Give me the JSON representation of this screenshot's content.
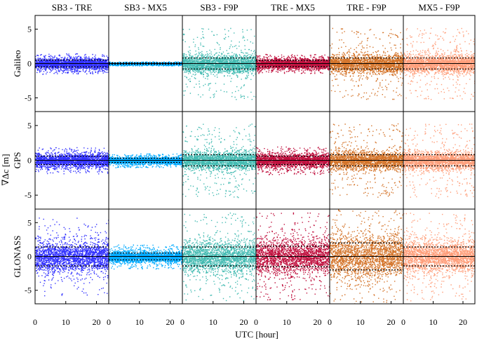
{
  "chart_data": {
    "type": "scatter",
    "ylabel": "∇Δc [m]",
    "xlabel": "UTC [hour]",
    "xlim": [
      0,
      24
    ],
    "ylim": [
      -7,
      7
    ],
    "x_ticks": [
      0,
      10,
      20
    ],
    "y_ticks": [
      -5,
      0,
      5
    ],
    "columns": [
      {
        "label": "SB3 - TRE",
        "color": "#3333ff"
      },
      {
        "label": "SB3 - MX5",
        "color": "#00aaff"
      },
      {
        "label": "SB3 - F9P",
        "color": "#44bbb2"
      },
      {
        "label": "TRE - MX5",
        "color": "#c0103e"
      },
      {
        "label": "TRE - F9P",
        "color": "#d4742a"
      },
      {
        "label": "MX5 - F9P",
        "color": "#ff9e7a"
      }
    ],
    "rows": [
      {
        "label": "Galileo",
        "std": [
          0.5,
          0.1,
          0.8,
          0.45,
          0.8,
          0.8
        ],
        "spread": [
          1.5,
          0.3,
          5.2,
          1.4,
          5.2,
          5.2
        ]
      },
      {
        "label": "GPS",
        "std": [
          0.6,
          0.3,
          0.8,
          0.6,
          0.8,
          0.8
        ],
        "spread": [
          1.9,
          1.0,
          5.3,
          2.0,
          5.3,
          5.3
        ]
      },
      {
        "label": "GLONASS",
        "std": [
          1.4,
          0.5,
          1.4,
          1.5,
          2.0,
          1.4
        ],
        "spread": [
          5.8,
          1.8,
          6.5,
          6.5,
          7.0,
          6.5
        ]
      }
    ],
    "series": [
      {
        "row": "Galileo",
        "name": "SB3 - TRE",
        "mean": 0,
        "std_band": 0.5
      },
      {
        "row": "Galileo",
        "name": "SB3 - MX5",
        "mean": 0,
        "std_band": 0.1
      },
      {
        "row": "Galileo",
        "name": "SB3 - F9P",
        "mean": 0,
        "std_band": 0.8
      },
      {
        "row": "Galileo",
        "name": "TRE - MX5",
        "mean": 0,
        "std_band": 0.45
      },
      {
        "row": "Galileo",
        "name": "TRE - F9P",
        "mean": 0,
        "std_band": 0.8
      },
      {
        "row": "Galileo",
        "name": "MX5 - F9P",
        "mean": 0,
        "std_band": 0.8
      },
      {
        "row": "GPS",
        "name": "SB3 - TRE",
        "mean": 0,
        "std_band": 0.6
      },
      {
        "row": "GPS",
        "name": "SB3 - MX5",
        "mean": 0,
        "std_band": 0.3
      },
      {
        "row": "GPS",
        "name": "SB3 - F9P",
        "mean": 0,
        "std_band": 0.8
      },
      {
        "row": "GPS",
        "name": "TRE - MX5",
        "mean": 0,
        "std_band": 0.6
      },
      {
        "row": "GPS",
        "name": "TRE - F9P",
        "mean": 0,
        "std_band": 0.8
      },
      {
        "row": "GPS",
        "name": "MX5 - F9P",
        "mean": 0,
        "std_band": 0.8
      },
      {
        "row": "GLONASS",
        "name": "SB3 - TRE",
        "mean": 0,
        "std_band": 1.4
      },
      {
        "row": "GLONASS",
        "name": "SB3 - MX5",
        "mean": 0,
        "std_band": 0.5
      },
      {
        "row": "GLONASS",
        "name": "SB3 - F9P",
        "mean": 0,
        "std_band": 1.4
      },
      {
        "row": "GLONASS",
        "name": "TRE - MX5",
        "mean": 0,
        "std_band": 1.5
      },
      {
        "row": "GLONASS",
        "name": "TRE - F9P",
        "mean": 0,
        "std_band": 2.0
      },
      {
        "row": "GLONASS",
        "name": "MX5 - F9P",
        "mean": 0,
        "std_band": 1.4
      }
    ],
    "grid": false,
    "legend": "none"
  }
}
